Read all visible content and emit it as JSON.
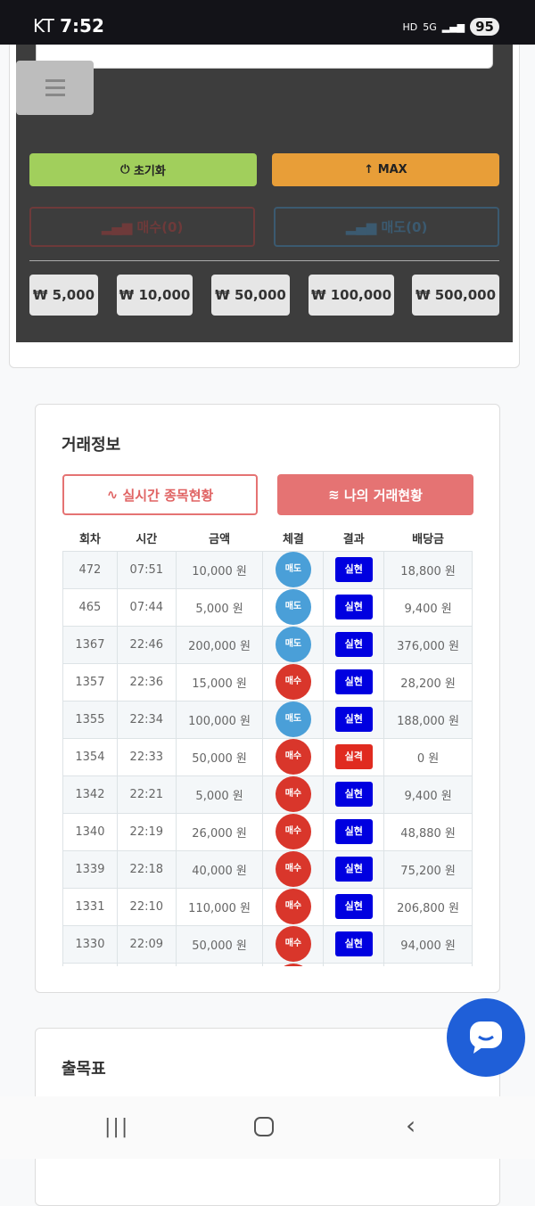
{
  "status_bar": {
    "carrier": "KT",
    "time": "7:52",
    "network": "5G",
    "battery": "95"
  },
  "controls": {
    "reset_label": "초기화",
    "max_label": "MAX",
    "buy_label": "매수(0)",
    "sell_label": "매도(0)",
    "amounts": [
      "₩ 5,000",
      "₩ 10,000",
      "₩ 50,000",
      "₩ 100,000",
      "₩ 500,000"
    ]
  },
  "trade_info": {
    "title": "거래정보",
    "tab_realtime": "실시간 종목현황",
    "tab_mine": "나의 거래현황",
    "columns": [
      "회차",
      "시간",
      "금액",
      "체결",
      "결과",
      "배당금"
    ],
    "rows": [
      {
        "round": "472",
        "time": "07:51",
        "amount": "10,000 원",
        "type": "매도",
        "result": "실현",
        "payout": "18,800 원"
      },
      {
        "round": "465",
        "time": "07:44",
        "amount": "5,000 원",
        "type": "매도",
        "result": "실현",
        "payout": "9,400 원"
      },
      {
        "round": "1367",
        "time": "22:46",
        "amount": "200,000 원",
        "type": "매도",
        "result": "실현",
        "payout": "376,000 원"
      },
      {
        "round": "1357",
        "time": "22:36",
        "amount": "15,000 원",
        "type": "매수",
        "result": "실현",
        "payout": "28,200 원"
      },
      {
        "round": "1355",
        "time": "22:34",
        "amount": "100,000 원",
        "type": "매도",
        "result": "실현",
        "payout": "188,000 원"
      },
      {
        "round": "1354",
        "time": "22:33",
        "amount": "50,000 원",
        "type": "매수",
        "result": "실격",
        "payout": "0 원"
      },
      {
        "round": "1342",
        "time": "22:21",
        "amount": "5,000 원",
        "type": "매수",
        "result": "실현",
        "payout": "9,400 원"
      },
      {
        "round": "1340",
        "time": "22:19",
        "amount": "26,000 원",
        "type": "매수",
        "result": "실현",
        "payout": "48,880 원"
      },
      {
        "round": "1339",
        "time": "22:18",
        "amount": "40,000 원",
        "type": "매수",
        "result": "실현",
        "payout": "75,200 원"
      },
      {
        "round": "1331",
        "time": "22:10",
        "amount": "110,000 원",
        "type": "매수",
        "result": "실현",
        "payout": "206,800 원"
      },
      {
        "round": "1330",
        "time": "22:09",
        "amount": "50,000 원",
        "type": "매수",
        "result": "실현",
        "payout": "94,000 원"
      }
    ]
  },
  "chart_section": {
    "title": "출목표"
  },
  "colors": {
    "sell": "#4a9fd8",
    "buy": "#d9362b",
    "realized": "#0000e0",
    "failed": "#e02b20",
    "accent": "#e57373"
  }
}
